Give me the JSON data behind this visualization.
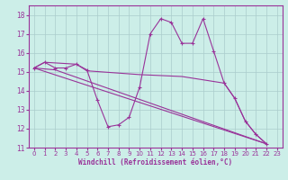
{
  "xlabel": "Windchill (Refroidissement éolien,°C)",
  "background_color": "#cceee8",
  "grid_color": "#aacccc",
  "line_color": "#993399",
  "xlim": [
    -0.5,
    23.5
  ],
  "ylim": [
    11,
    18.5
  ],
  "xticks": [
    0,
    1,
    2,
    3,
    4,
    5,
    6,
    7,
    8,
    9,
    10,
    11,
    12,
    13,
    14,
    15,
    16,
    17,
    18,
    19,
    20,
    21,
    22,
    23
  ],
  "yticks": [
    11,
    12,
    13,
    14,
    15,
    16,
    17,
    18
  ],
  "series_main": [
    [
      0,
      15.2
    ],
    [
      1,
      15.5
    ],
    [
      2,
      15.2
    ],
    [
      3,
      15.2
    ],
    [
      4,
      15.4
    ],
    [
      5,
      15.1
    ],
    [
      6,
      13.5
    ],
    [
      7,
      12.1
    ],
    [
      8,
      12.2
    ],
    [
      9,
      12.6
    ],
    [
      10,
      14.2
    ],
    [
      11,
      17.0
    ],
    [
      12,
      17.8
    ],
    [
      13,
      17.6
    ],
    [
      14,
      16.5
    ],
    [
      15,
      16.5
    ],
    [
      16,
      17.8
    ],
    [
      17,
      16.1
    ],
    [
      18,
      14.4
    ],
    [
      19,
      13.6
    ],
    [
      20,
      12.4
    ],
    [
      21,
      11.7
    ],
    [
      22,
      11.2
    ]
  ],
  "series_line1": [
    [
      0,
      15.2
    ],
    [
      22,
      11.2
    ]
  ],
  "series_line2": [
    [
      0,
      15.2
    ],
    [
      2,
      15.1
    ],
    [
      22,
      11.2
    ]
  ],
  "series_line3": [
    [
      0,
      15.2
    ],
    [
      1,
      15.5
    ],
    [
      4,
      15.4
    ],
    [
      5,
      15.05
    ],
    [
      10,
      14.85
    ],
    [
      14,
      14.75
    ],
    [
      18,
      14.4
    ],
    [
      19,
      13.6
    ],
    [
      20,
      12.4
    ],
    [
      21,
      11.7
    ],
    [
      22,
      11.2
    ]
  ]
}
